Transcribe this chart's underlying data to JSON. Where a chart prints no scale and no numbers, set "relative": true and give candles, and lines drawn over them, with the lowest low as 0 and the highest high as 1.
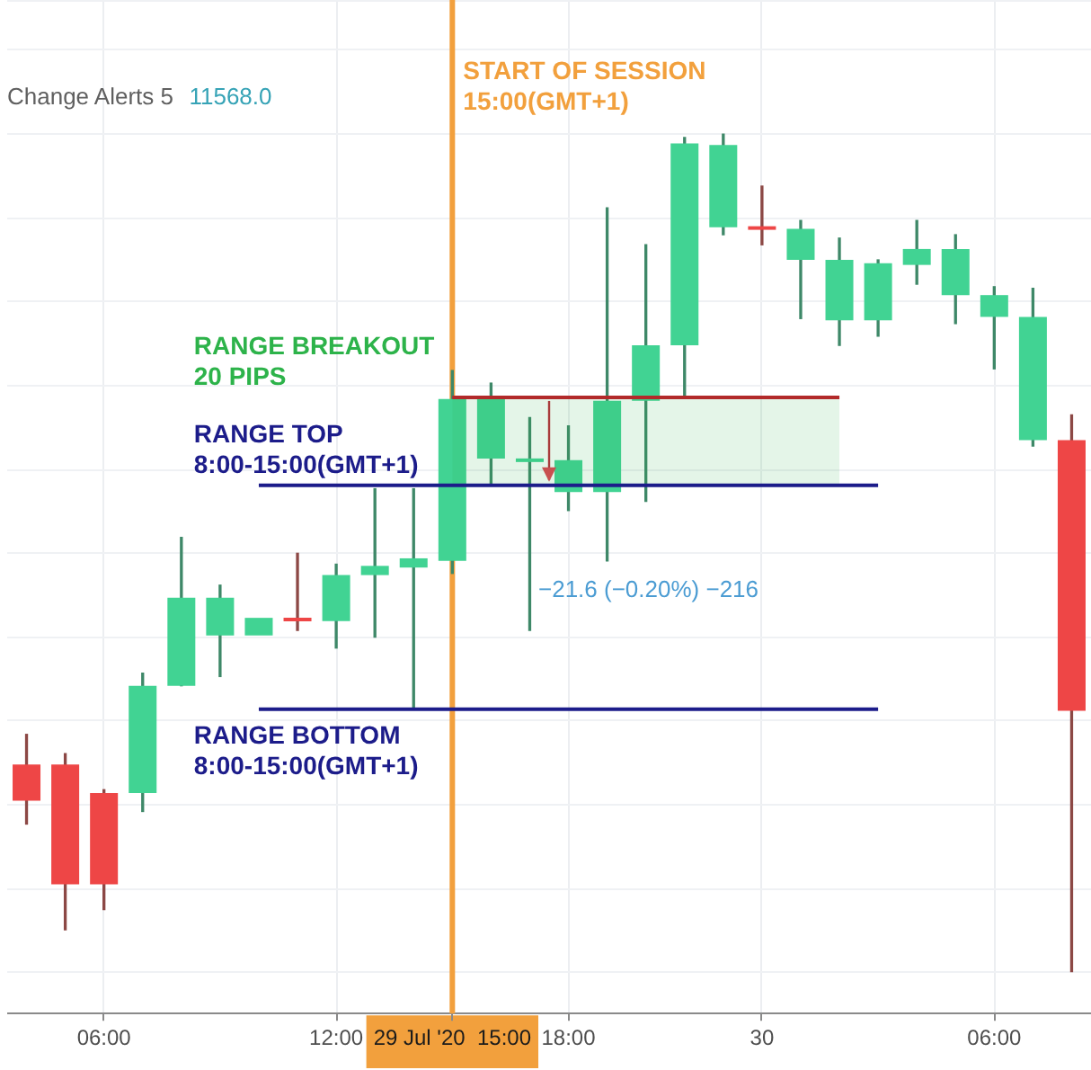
{
  "chart_data": {
    "type": "candlestick",
    "relative": true,
    "categories": [
      null,
      null,
      "06:00",
      null,
      null,
      null,
      null,
      null,
      "12:00",
      null,
      null,
      "29 Jul '20  15:00",
      null,
      null,
      "18:00",
      null,
      null,
      null,
      null,
      "30",
      null,
      null,
      null,
      null,
      null,
      "06:00",
      null,
      null
    ],
    "ohlc": [
      [
        0.248,
        0.284,
        0.177,
        0.205
      ],
      [
        0.248,
        0.261,
        0.051,
        0.105
      ],
      [
        0.214,
        0.218,
        0.075,
        0.105
      ],
      [
        0.214,
        0.357,
        0.192,
        0.342
      ],
      [
        0.342,
        0.519,
        0.342,
        0.447
      ],
      [
        0.402,
        0.462,
        0.353,
        0.447
      ],
      [
        0.402,
        0.423,
        0.402,
        0.423
      ],
      [
        0.423,
        0.5,
        0.408,
        0.419
      ],
      [
        0.419,
        0.487,
        0.387,
        0.474
      ],
      [
        0.474,
        0.577,
        0.4,
        0.485
      ],
      [
        0.483,
        0.577,
        0.316,
        0.494
      ],
      [
        0.491,
        0.718,
        0.476,
        0.684
      ],
      [
        0.613,
        0.703,
        0.583,
        0.684
      ],
      [
        0.611,
        0.662,
        0.408,
        0.611
      ],
      [
        0.573,
        0.652,
        0.551,
        0.611
      ],
      [
        0.573,
        0.912,
        0.491,
        0.682
      ],
      [
        0.682,
        0.868,
        0.562,
        0.748
      ],
      [
        0.748,
        0.996,
        0.686,
        0.989
      ],
      [
        0.889,
        1,
        0.88,
        0.987
      ],
      [
        0.889,
        0.938,
        0.868,
        0.887
      ],
      [
        0.85,
        0.897,
        0.78,
        0.887
      ],
      [
        0.778,
        0.876,
        0.748,
        0.85
      ],
      [
        0.778,
        0.85,
        0.759,
        0.846
      ],
      [
        0.844,
        0.897,
        0.821,
        0.863
      ],
      [
        0.808,
        0.88,
        0.774,
        0.863
      ],
      [
        0.782,
        0.818,
        0.72,
        0.808
      ],
      [
        0.635,
        0.816,
        0.628,
        0.782
      ],
      [
        0.635,
        0.665,
        0,
        0.312
      ]
    ],
    "colors": [
      "#ee4646",
      "#ee4646",
      "#ee4646",
      "#41d393",
      "#41d393",
      "#41d393",
      "#41d393",
      "#ee4646",
      "#41d393",
      "#41d393",
      "#41d393",
      "#41d393",
      "#41d393",
      "#41d393",
      "#41d393",
      "#41d393",
      "#41d393",
      "#41d393",
      "#41d393",
      "#ee4646",
      "#41d393",
      "#41d393",
      "#41d393",
      "#41d393",
      "#41d393",
      "#41d393",
      "#41d393",
      "#ee4646"
    ],
    "series": [
      {
        "type": "line",
        "name": "RANGE BREAKOUT 20 PIPS",
        "color": "#b22a2a",
        "values": [
          null,
          null,
          null,
          null,
          null,
          null,
          null,
          null,
          null,
          null,
          null,
          0.686,
          0.686,
          0.686,
          0.686,
          0.686,
          0.686,
          0.686,
          0.686,
          0.686,
          0.686,
          0.686,
          null,
          null,
          null,
          null,
          null,
          null
        ],
        "lower": [
          null,
          null,
          null,
          null,
          null,
          null,
          null,
          null,
          null,
          null,
          null,
          0.581,
          0.581,
          0.581,
          0.581,
          0.581,
          0.581,
          0.581,
          0.581,
          0.581,
          0.581,
          0.581,
          null,
          null,
          null,
          null,
          null,
          null
        ],
        "upper": [
          null,
          null,
          null,
          null,
          null,
          null,
          null,
          null,
          null,
          null,
          null,
          0.686,
          0.686,
          0.686,
          0.686,
          0.686,
          0.686,
          0.686,
          0.686,
          0.686,
          0.686,
          0.686,
          null,
          null,
          null,
          null,
          null,
          null
        ]
      },
      {
        "type": "line",
        "name": "RANGE TOP 8:00-15:00(GMT+1)",
        "color": "#1c1c8a",
        "values": [
          null,
          null,
          null,
          null,
          null,
          null,
          0.581,
          0.581,
          0.581,
          0.581,
          0.581,
          0.581,
          0.581,
          0.581,
          0.581,
          0.581,
          0.581,
          0.581,
          0.581,
          0.581,
          0.581,
          0.581,
          0.581,
          null,
          null,
          null,
          null,
          null
        ]
      },
      {
        "type": "line",
        "name": "RANGE BOTTOM 8:00-15:00(GMT+1)",
        "color": "#1c1c8a",
        "values": [
          null,
          null,
          null,
          null,
          null,
          null,
          0.314,
          0.314,
          0.314,
          0.314,
          0.314,
          0.314,
          0.314,
          0.314,
          0.314,
          0.314,
          0.314,
          0.314,
          0.314,
          0.314,
          0.314,
          0.314,
          0.314,
          null,
          null,
          null,
          null,
          null
        ]
      }
    ],
    "ref_lines": [
      {
        "axis": "x",
        "value": "29 Jul '20  15:00",
        "label": "START OF SESSION 15:00(GMT+1)",
        "color": "#f2a03d"
      }
    ],
    "annotations": [
      "Change Alerts 5",
      "11568.0",
      "−21.6 (−0.20%) −216"
    ],
    "grid": true,
    "legend": false,
    "tick_labels": "x"
  }
}
